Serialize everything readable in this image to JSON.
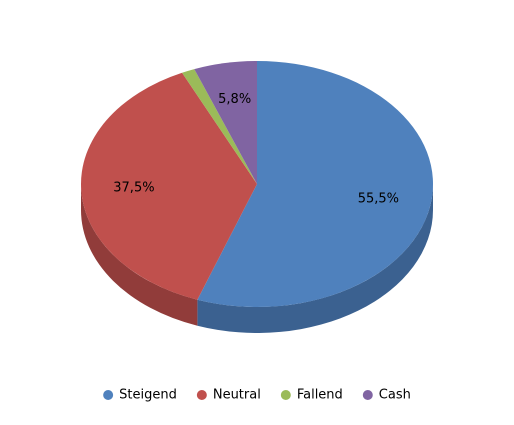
{
  "chart_data": {
    "type": "pie3d",
    "categories": [
      "Steigend",
      "Neutral",
      "Fallend",
      "Cash"
    ],
    "values": [
      55.5,
      37.5,
      1.2,
      5.8
    ],
    "value_labels": [
      "55,5%",
      "37,5%",
      null,
      "5,8%"
    ],
    "colors": [
      "#4f81bd",
      "#c0504d",
      "#9bbb59",
      "#8064a2"
    ],
    "side_colors": [
      "#3b6190",
      "#913c3a",
      "#748d42",
      "#604b7a"
    ],
    "legend": "bottom"
  }
}
